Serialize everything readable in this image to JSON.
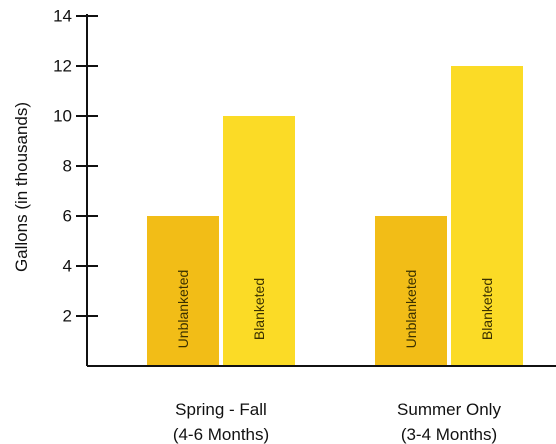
{
  "chart_data": {
    "type": "bar",
    "categories": [
      {
        "line1": "Spring - Fall",
        "line2": "(4-6 Months)"
      },
      {
        "line1": "Summer Only",
        "line2": "(3-4 Months)"
      }
    ],
    "series": [
      {
        "name": "Unblanketed",
        "values": [
          6,
          6
        ],
        "color": "#f2bd17"
      },
      {
        "name": "Blanketed",
        "values": [
          10,
          12
        ],
        "color": "#fbdb26"
      }
    ],
    "ylabel": "Gallons (in thousands)",
    "yticks": [
      2,
      4,
      6,
      8,
      10,
      12,
      14
    ],
    "ylim": [
      0,
      15
    ],
    "grid": false,
    "legend": "none"
  }
}
